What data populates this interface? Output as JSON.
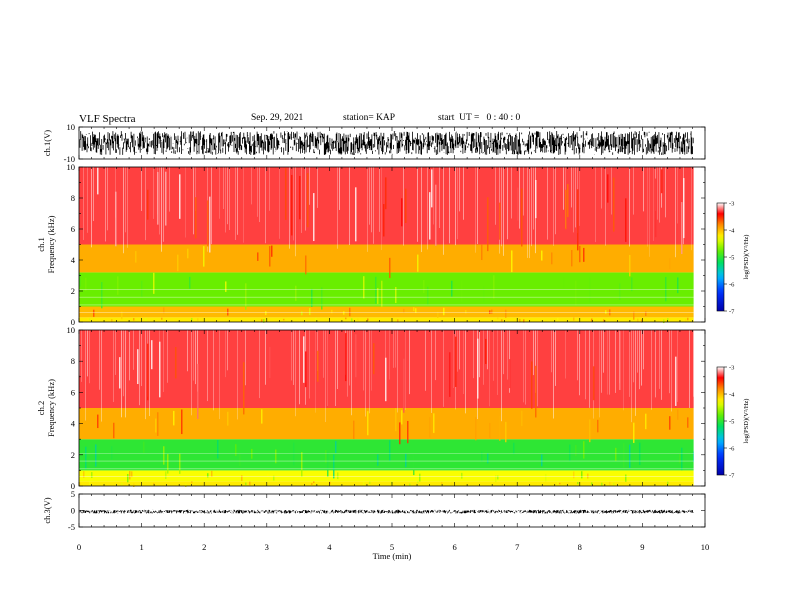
{
  "header": {
    "title": "VLF Spectra",
    "date": "Sep. 29, 2021",
    "station": "station= KAP",
    "start": "start  UT =   0 : 40 : 0"
  },
  "chart_data": [
    {
      "type": "line",
      "panel": "waveform-ch1",
      "ylabel": "ch.1(V)",
      "ylim": [
        -10,
        10
      ],
      "yticks": [
        -10,
        10
      ],
      "xlim": [
        0,
        10
      ],
      "data_end_min": 9.82,
      "amplitude_band_V": [
        -7.5,
        7.5
      ],
      "color": "#000000"
    },
    {
      "type": "heatmap",
      "panel": "spectrogram-ch1",
      "ylabel": "ch.1\nFrequency (kHz)",
      "ylim": [
        0,
        10
      ],
      "yticks": [
        0,
        2,
        4,
        6,
        8,
        10
      ],
      "xlim": [
        0,
        10
      ],
      "data_end_min": 9.82,
      "bands": [
        {
          "from_kHz": 0.0,
          "to_kHz": 0.3,
          "level": -4.2
        },
        {
          "from_kHz": 0.3,
          "to_kHz": 1.0,
          "level": -4.0
        },
        {
          "from_kHz": 1.0,
          "to_kHz": 3.2,
          "level": -4.75
        },
        {
          "from_kHz": 3.2,
          "to_kHz": 5.0,
          "level": -3.95
        },
        {
          "from_kHz": 5.0,
          "to_kHz": 10.0,
          "level": -3.3
        }
      ],
      "colorbar": {
        "min": -7,
        "max": -3,
        "ticks": [
          -3,
          -4,
          -5,
          -6,
          -7
        ],
        "label": "log(PSD)(V²/Hz)"
      }
    },
    {
      "type": "heatmap",
      "panel": "spectrogram-ch2",
      "ylabel": "ch.2\nFrequency (kHz)",
      "ylim": [
        0,
        10
      ],
      "yticks": [
        0,
        2,
        4,
        6,
        8,
        10
      ],
      "xlim": [
        0,
        10
      ],
      "data_end_min": 9.82,
      "bands": [
        {
          "from_kHz": 0.0,
          "to_kHz": 0.3,
          "level": -4.2
        },
        {
          "from_kHz": 0.3,
          "to_kHz": 1.0,
          "level": -4.3
        },
        {
          "from_kHz": 1.0,
          "to_kHz": 3.0,
          "level": -5.0
        },
        {
          "from_kHz": 3.0,
          "to_kHz": 5.0,
          "level": -3.95
        },
        {
          "from_kHz": 5.0,
          "to_kHz": 10.0,
          "level": -3.3
        }
      ],
      "colorbar": {
        "min": -7,
        "max": -3,
        "ticks": [
          -3,
          -4,
          -5,
          -6,
          -7
        ],
        "label": "log(PSD)(V²/Hz)"
      }
    },
    {
      "type": "line",
      "panel": "waveform-ch3",
      "ylabel": "ch.3(V)",
      "ylim": [
        -5,
        5
      ],
      "yticks": [
        -5,
        0,
        5
      ],
      "xlim": [
        0,
        10
      ],
      "data_end_min": 9.82,
      "amplitude_band_V": [
        -0.9,
        0.2
      ],
      "xlabel": "Time (min)",
      "xticks": [
        0,
        1,
        2,
        3,
        4,
        5,
        6,
        7,
        8,
        9,
        10
      ],
      "color": "#000000"
    }
  ]
}
